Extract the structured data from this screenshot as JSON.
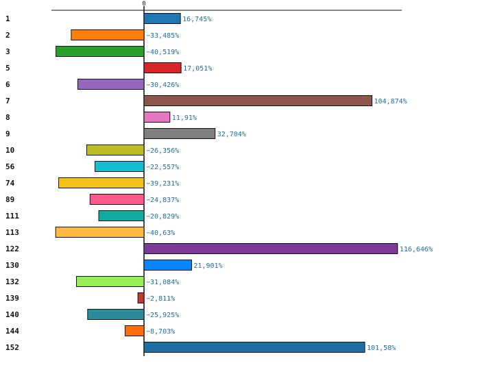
{
  "chart_data": {
    "type": "bar",
    "orientation": "horizontal",
    "title": "",
    "xlabel": "",
    "ylabel": "",
    "zero_tick_label": "0",
    "xlim": [
      -46.5,
      135
    ],
    "grid": false,
    "categories": [
      "1",
      "2",
      "3",
      "5",
      "6",
      "7",
      "8",
      "9",
      "10",
      "56",
      "74",
      "89",
      "111",
      "113",
      "122",
      "130",
      "132",
      "139",
      "140",
      "144",
      "152"
    ],
    "values": [
      16.745,
      -33.485,
      -40.519,
      17.051,
      -30.426,
      104.874,
      11.91,
      32.704,
      -26.356,
      -22.557,
      -39.231,
      -24.837,
      -20.829,
      -40.63,
      116.646,
      21.901,
      -31.084,
      -2.811,
      -25.925,
      -8.703,
      101.58
    ],
    "value_labels": [
      "16,745%",
      "−33,485%",
      "−40,519%",
      "17,051%",
      "−30,426%",
      "104,874%",
      "11,91%",
      "32,704%",
      "−26,356%",
      "−22,557%",
      "−39,231%",
      "−24,837%",
      "−20,829%",
      "−40,63%",
      "116,646%",
      "21,901%",
      "−31,084%",
      "−2,811%",
      "−25,925%",
      "−8,703%",
      "101,58%"
    ],
    "colors": [
      "#1f77b4",
      "#ff7f0e",
      "#2ca02c",
      "#d62728",
      "#9467bd",
      "#8c564b",
      "#e377c2",
      "#7f7f7f",
      "#bcbd22",
      "#17becf",
      "#f2c21b",
      "#ff5a8a",
      "#10aaa0",
      "#ffbb44",
      "#7b3a96",
      "#0a84ff",
      "#98ee55",
      "#c0392b",
      "#2c8c99",
      "#ff6d10",
      "#1f6fa5"
    ]
  }
}
